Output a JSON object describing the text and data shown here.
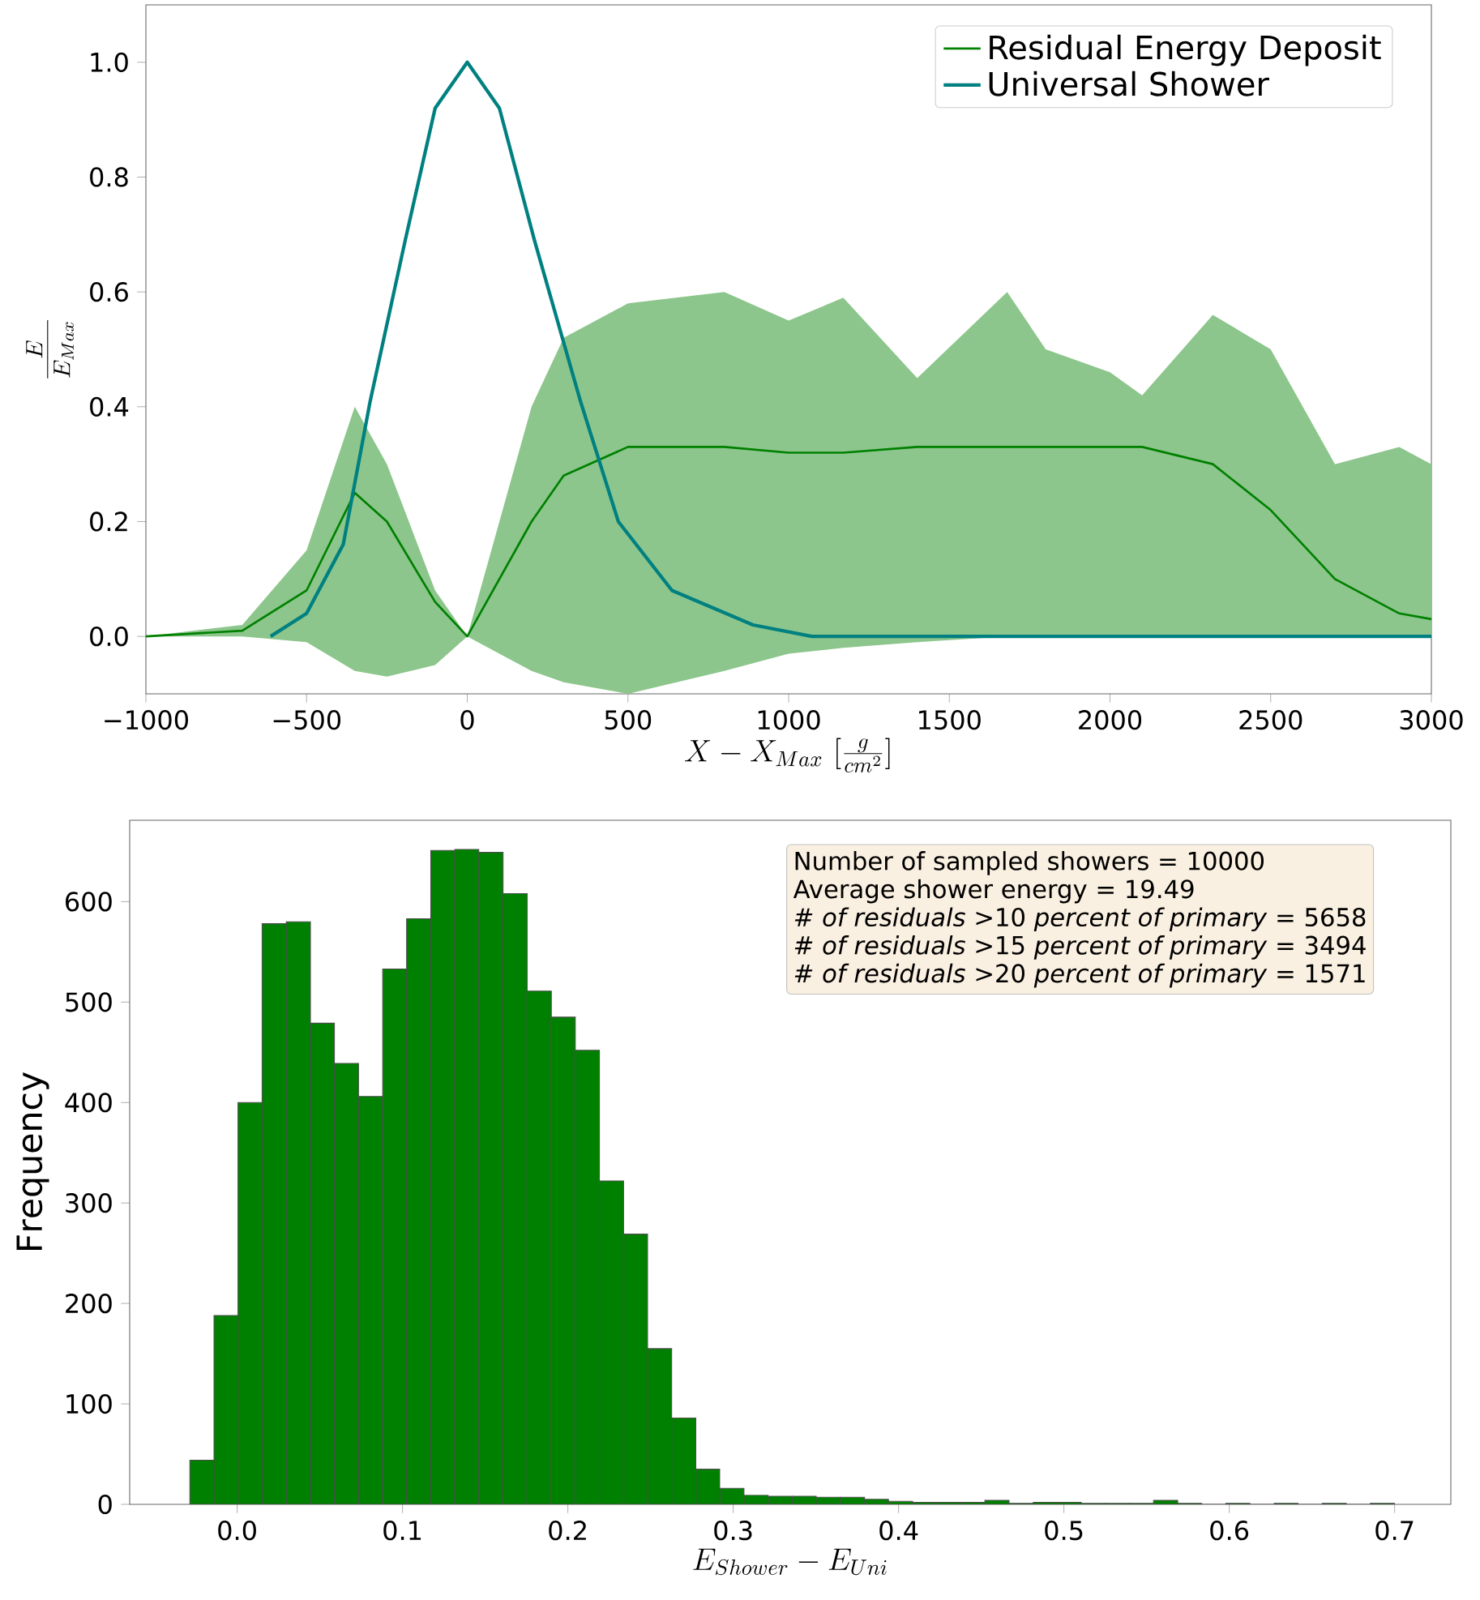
{
  "chart_data": [
    {
      "type": "line",
      "xlabel": "X - X_{Max}\\ [\\frac{g}{cm^2}]",
      "ylabel": "\\frac{E}{E_{Max}}",
      "legend": "top right",
      "xlim": [
        -1000,
        3000
      ],
      "ylim": [
        -0.1,
        1.1
      ],
      "xticks": [
        {
          "value": -1000,
          "label": "−1000"
        },
        {
          "value": -500,
          "label": "−500"
        },
        0,
        500,
        1000,
        1500,
        2000,
        2500,
        3000
      ],
      "yticks": [
        {
          "value": 0,
          "label": "0.0"
        },
        {
          "value": 0.2,
          "label": "0.2"
        },
        {
          "value": 0.4,
          "label": "0.4"
        },
        {
          "value": 0.6,
          "label": "0.6"
        },
        {
          "value": 0.8,
          "label": "0.8"
        },
        {
          "value": 1,
          "label": "1.0"
        }
      ],
      "series": [
        {
          "name": "Residual Energy Deposit",
          "color": "#008000",
          "x": [
            -1000,
            -700,
            -500,
            -350,
            -250,
            -100,
            0,
            200,
            300,
            500,
            800,
            1000,
            1170,
            1400,
            1680,
            1800,
            2000,
            2100,
            2320,
            2500,
            2700,
            2900,
            3000
          ],
          "values": [
            0,
            0.01,
            0.08,
            0.25,
            0.2,
            0.06,
            0,
            0.2,
            0.28,
            0.33,
            0.33,
            0.32,
            0.32,
            0.33,
            0.33,
            0.33,
            0.33,
            0.33,
            0.3,
            0.22,
            0.1,
            0.04,
            0.03
          ],
          "lower": [
            0,
            0,
            -0.01,
            -0.06,
            -0.07,
            -0.05,
            0,
            -0.06,
            -0.08,
            -0.1,
            -0.06,
            -0.03,
            -0.02,
            -0.01,
            0,
            0,
            0,
            0,
            0,
            0,
            0,
            0,
            0
          ],
          "upper": [
            0,
            0.02,
            0.15,
            0.4,
            0.3,
            0.08,
            0,
            0.4,
            0.52,
            0.58,
            0.6,
            0.55,
            0.59,
            0.45,
            0.6,
            0.5,
            0.46,
            0.42,
            0.56,
            0.5,
            0.3,
            0.33,
            0.3
          ]
        },
        {
          "name": "Universal Shower",
          "color": "#008080",
          "x": [
            -612,
            -500,
            -386,
            -302,
            -193,
            -100,
            0,
            100,
            209,
            352,
            470,
            637,
            889,
            1072,
            1500,
            3000
          ],
          "values": [
            0,
            0.04,
            0.16,
            0.41,
            0.69,
            0.92,
            1,
            0.92,
            0.69,
            0.41,
            0.2,
            0.08,
            0.02,
            0,
            0,
            0
          ]
        }
      ]
    },
    {
      "type": "histogram",
      "xlabel": "E_{Shower} - E_{Uni}",
      "ylabel": "\\mathrm{Frequency}",
      "color": "#008000",
      "xlim": [
        -0.065,
        0.734
      ],
      "ylim": [
        0,
        681
      ],
      "xticks": [
        {
          "value": 0,
          "label": "0.0"
        },
        {
          "value": 0.1,
          "label": "0.1"
        },
        {
          "value": 0.2,
          "label": "0.2"
        },
        {
          "value": 0.3,
          "label": "0.3"
        },
        {
          "value": 0.4,
          "label": "0.4"
        },
        {
          "value": 0.5,
          "label": "0.5"
        },
        {
          "value": 0.6,
          "label": "0.6"
        },
        {
          "value": 0.7,
          "label": "0.7"
        }
      ],
      "yticks": [
        0,
        100,
        200,
        300,
        400,
        500,
        600
      ],
      "bins": [
        -0.0286,
        -0.014,
        0.0005,
        0.0151,
        0.0297,
        0.0443,
        0.0588,
        0.0734,
        0.088,
        0.1025,
        0.1171,
        0.1317,
        0.1462,
        0.1608,
        0.1754,
        0.19,
        0.2045,
        0.2191,
        0.2337,
        0.2482,
        0.2628,
        0.2774,
        0.2919,
        0.3065,
        0.3211,
        0.3357,
        0.3502,
        0.3648,
        0.3794,
        0.3939,
        0.4085,
        0.4231,
        0.4376,
        0.4522,
        0.4668,
        0.4814,
        0.4959,
        0.5105,
        0.5251,
        0.5396,
        0.5542,
        0.5688,
        0.5833,
        0.5979,
        0.6125,
        0.6271,
        0.6416,
        0.6562,
        0.6708,
        0.6853,
        0.6999
      ],
      "values": [
        44,
        188,
        400,
        578,
        580,
        479,
        439,
        406,
        533,
        583,
        651,
        652,
        649,
        608,
        511,
        485,
        452,
        322,
        269,
        155,
        86,
        35,
        16,
        9,
        8,
        8,
        7,
        7,
        5,
        3,
        2,
        2,
        2,
        4,
        1,
        2,
        2,
        1,
        1,
        1,
        4,
        1,
        0,
        1,
        0,
        1,
        0,
        1,
        0,
        1
      ],
      "annotations": [
        "Number of sampled showers =  10000",
        "Average shower energy = 19.49",
        "*# of residuals* >10 *percent of primary* = 5658",
        "*# of residuals* >15 *percent of primary* = 3494",
        "*# of residuals* >20 *percent of primary* = 1571"
      ]
    }
  ]
}
